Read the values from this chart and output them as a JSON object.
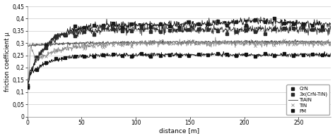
{
  "title": "",
  "xlabel": "distance [m]",
  "ylabel": "friction coefficient μ",
  "xlim": [
    0,
    280
  ],
  "ylim": [
    0,
    0.45
  ],
  "yticks": [
    0,
    0.05,
    0.1,
    0.15,
    0.2,
    0.25,
    0.3,
    0.35,
    0.4,
    0.45
  ],
  "ytick_labels": [
    "0",
    "0,05",
    "0,1",
    "0,15",
    "0,2",
    "0,25",
    "0,3",
    "0,35",
    "0,4",
    "0,45"
  ],
  "xticks": [
    0,
    50,
    100,
    150,
    200,
    250
  ],
  "xtick_labels": [
    "0",
    "50",
    "100",
    "150",
    "200",
    "250"
  ],
  "legend_entries": [
    "CrN",
    "3x(CrN-TiN)",
    "TiAlN",
    "TiN",
    "PM"
  ],
  "background_color": "#ffffff",
  "grid_color": "#cccccc",
  "noise_seed": 42
}
